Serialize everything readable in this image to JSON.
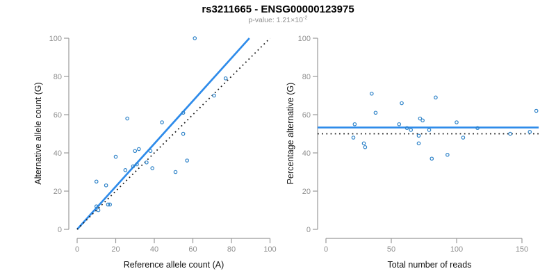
{
  "header": {
    "title": "rs3211665 - ENSG00000123975",
    "pvalue_prefix": "p-value: 1.21×10",
    "pvalue_exponent": "-2"
  },
  "colors": {
    "point": "#2d82c8",
    "line_blue": "#2e8bea",
    "line_dotted": "#1a1a1a",
    "axis": "#9a9a9a",
    "tick_label": "#8f8f8f",
    "axis_title": "#111111",
    "subtitle": "#8f8f8f"
  },
  "chart_data": [
    {
      "type": "scatter",
      "panel": "left",
      "xlabel": "Reference allele count (A)",
      "ylabel": "Alternative allele count (G)",
      "xlim": [
        0,
        100
      ],
      "ylim": [
        0,
        100
      ],
      "xticks": [
        0,
        20,
        40,
        60,
        80,
        100
      ],
      "yticks": [
        0,
        20,
        40,
        60,
        80,
        100
      ],
      "grid": false,
      "points": [
        [
          61,
          100
        ],
        [
          77,
          79
        ],
        [
          71,
          70
        ],
        [
          55,
          61
        ],
        [
          26,
          58
        ],
        [
          44,
          56
        ],
        [
          55,
          50
        ],
        [
          32,
          42
        ],
        [
          30,
          41
        ],
        [
          38,
          41
        ],
        [
          20,
          38
        ],
        [
          57,
          36
        ],
        [
          36,
          35
        ],
        [
          31,
          34
        ],
        [
          29,
          33
        ],
        [
          39,
          32
        ],
        [
          25,
          31
        ],
        [
          51,
          30
        ],
        [
          10,
          25
        ],
        [
          15,
          23
        ],
        [
          16,
          13
        ],
        [
          17,
          13
        ],
        [
          10,
          12
        ],
        [
          11,
          10
        ]
      ],
      "lines": [
        {
          "name": "regression-line",
          "x1": 0,
          "y1": 0,
          "x2": 89.3,
          "y2": 100,
          "style": "solid"
        },
        {
          "name": "identity-line",
          "x1": 0,
          "y1": 0,
          "x2": 100,
          "y2": 100,
          "style": "dotted"
        }
      ]
    },
    {
      "type": "scatter",
      "panel": "right",
      "xlabel": "Total number of reads",
      "ylabel": "Percentage alternative (G)",
      "xlim": [
        0,
        163
      ],
      "ylim": [
        0,
        100
      ],
      "xticks": [
        0,
        50,
        100,
        150
      ],
      "yticks": [
        0,
        20,
        40,
        60,
        80,
        100
      ],
      "grid": false,
      "points": [
        [
          161,
          62
        ],
        [
          156,
          51
        ],
        [
          141,
          50
        ],
        [
          116,
          53
        ],
        [
          105,
          48
        ],
        [
          100,
          56
        ],
        [
          93,
          39
        ],
        [
          84,
          69
        ],
        [
          81,
          37
        ],
        [
          79,
          52
        ],
        [
          74,
          57
        ],
        [
          72,
          58
        ],
        [
          71,
          49
        ],
        [
          71,
          45
        ],
        [
          65,
          52
        ],
        [
          62,
          53
        ],
        [
          58,
          66
        ],
        [
          56,
          55
        ],
        [
          38,
          61
        ],
        [
          35,
          71
        ],
        [
          30,
          43
        ],
        [
          29,
          45
        ],
        [
          22,
          55
        ],
        [
          21,
          48
        ]
      ],
      "lines": [
        {
          "name": "mean-line",
          "x1": -6.4,
          "y1": 53.3,
          "x2": 162.8,
          "y2": 53.3,
          "style": "solid"
        },
        {
          "name": "null-line",
          "x1": -6.4,
          "y1": 50,
          "x2": 162.8,
          "y2": 50,
          "style": "dotted"
        }
      ]
    }
  ]
}
